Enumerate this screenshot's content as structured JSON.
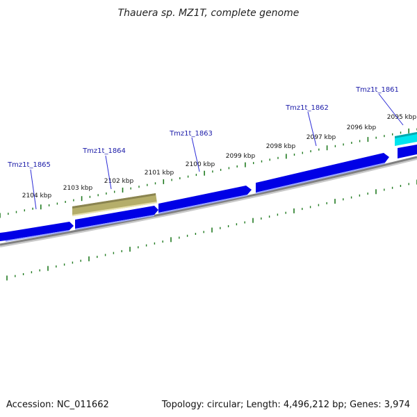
{
  "title": "Thauera sp. MZ1T, complete genome",
  "footer": {
    "accession": "Accession: NC_011662",
    "summary": "Topology: circular; Length: 4,496,212 bp; Genes: 3,974"
  },
  "colors": {
    "background": "#ffffff",
    "backbone": "#808080",
    "cds_forward": "#0000e6",
    "cds_highlight_olive": "#b5ae6a",
    "cds_highlight_cyan": "#00e5ee",
    "ticks": "#1f7a1f",
    "gene_label": "#1a1aa8",
    "leader_line": "#2b2bd6"
  },
  "ticks_kbp": [
    {
      "label": "2104 kbp",
      "value": 2104
    },
    {
      "label": "2103 kbp",
      "value": 2103
    },
    {
      "label": "2102 kbp",
      "value": 2102
    },
    {
      "label": "2101 kbp",
      "value": 2101
    },
    {
      "label": "2100 kbp",
      "value": 2100
    },
    {
      "label": "2099 kbp",
      "value": 2099
    },
    {
      "label": "2098 kbp",
      "value": 2098
    },
    {
      "label": "2097 kbp",
      "value": 2097
    },
    {
      "label": "2096 kbp",
      "value": 2096
    },
    {
      "label": "2095 kbp",
      "value": 2095
    }
  ],
  "genes": [
    {
      "name": "Tmz1t_1865",
      "strand": "+",
      "color": "cds_forward"
    },
    {
      "name": "Tmz1t_1864",
      "strand": "+",
      "color": "cds_highlight_olive"
    },
    {
      "name": "Tmz1t_1863",
      "strand": "+",
      "color": "cds_forward"
    },
    {
      "name": "Tmz1t_1862",
      "strand": "+",
      "color": "cds_forward"
    },
    {
      "name": "Tmz1t_1861",
      "strand": "+",
      "color": "cds_highlight_cyan"
    }
  ]
}
